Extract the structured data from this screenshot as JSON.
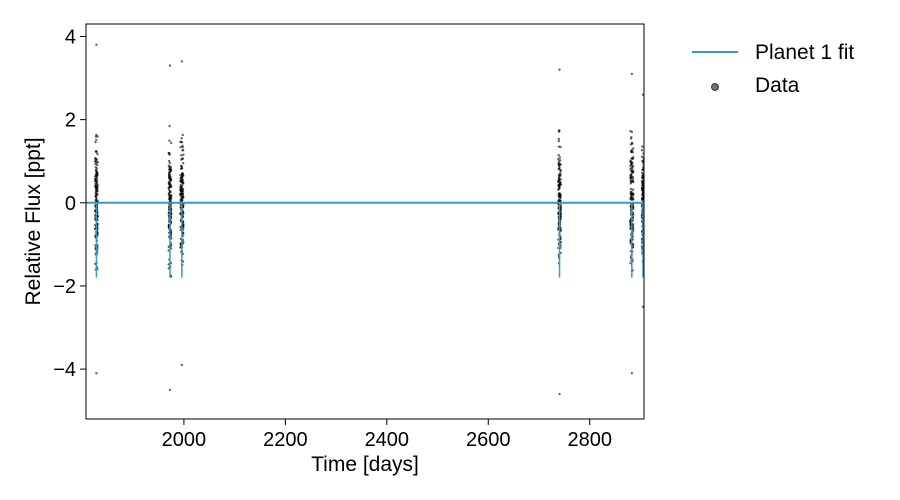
{
  "chart_data": {
    "type": "scatter",
    "xlabel": "Time [days]",
    "ylabel": "Relative Flux [ppt]",
    "xlim": [
      1807,
      2907
    ],
    "ylim": [
      -5.2,
      4.3
    ],
    "x_ticks": [
      2000,
      2200,
      2400,
      2600,
      2800
    ],
    "x_tick_labels": [
      "2000",
      "2200",
      "2400",
      "2600",
      "2800"
    ],
    "y_ticks": [
      -4,
      -2,
      0,
      2,
      4
    ],
    "y_tick_labels": [
      "−4",
      "−2",
      "0",
      "2",
      "4"
    ],
    "grid": false,
    "legend_position": "outside-right",
    "series": [
      {
        "name": "Planet 1 fit",
        "kind": "line",
        "color": "#3b97c8",
        "x": [
          1807,
          2907
        ],
        "y": [
          0,
          0
        ]
      },
      {
        "name": "Data",
        "kind": "points",
        "color": "#000000",
        "observing_windows": [
          {
            "x_range": [
              1825,
              1830
            ],
            "y_range": [
              -4.1,
              3.8
            ]
          },
          {
            "x_range": [
              1970,
              1975
            ],
            "y_range": [
              -4.5,
              3.3
            ]
          },
          {
            "x_range": [
              1993,
              1999
            ],
            "y_range": [
              -3.9,
              3.4
            ]
          },
          {
            "x_range": [
              2738,
              2743
            ],
            "y_range": [
              -4.6,
              3.2
            ]
          },
          {
            "x_range": [
              2880,
              2886
            ],
            "y_range": [
              -4.1,
              3.1
            ]
          },
          {
            "x_range": [
              2903,
              2907
            ],
            "y_range": [
              -2.5,
              2.6
            ]
          }
        ]
      }
    ],
    "legend": [
      "Planet 1 fit",
      "Data"
    ]
  },
  "colors": {
    "fit_line": "#3b97c8",
    "data_points": "#000000"
  }
}
